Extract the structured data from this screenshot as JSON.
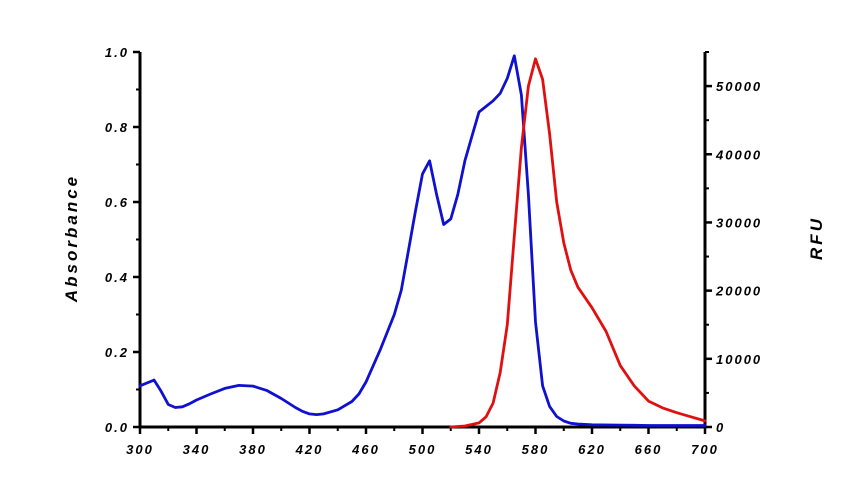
{
  "chart_data": {
    "type": "line",
    "title": "",
    "xlabel": "",
    "ylabel_left": "Absorbance",
    "ylabel_right": "RFU",
    "xlim": [
      300,
      700
    ],
    "ylim_left": [
      0,
      1.0
    ],
    "ylim_right": [
      0,
      55000
    ],
    "x_ticks": [
      "300",
      "340",
      "380",
      "420",
      "460",
      "500",
      "540",
      "580",
      "620",
      "660",
      "700"
    ],
    "y_left_ticks": [
      "0.0",
      "0.2",
      "0.4",
      "0.6",
      "0.8",
      "1.0"
    ],
    "y_right_ticks": [
      "0",
      "10000",
      "20000",
      "30000",
      "40000",
      "50000"
    ],
    "grid": false,
    "series": [
      {
        "axis": "left",
        "color": "#1010d0",
        "x": [
          300,
          310,
          315,
          320,
          325,
          330,
          335,
          340,
          350,
          360,
          370,
          380,
          390,
          400,
          410,
          415,
          420,
          425,
          430,
          440,
          450,
          455,
          460,
          470,
          480,
          485,
          490,
          495,
          500,
          505,
          510,
          515,
          520,
          525,
          530,
          535,
          540,
          550,
          555,
          560,
          565,
          570,
          575,
          580,
          585,
          590,
          595,
          600,
          605,
          610,
          620,
          640,
          660,
          680,
          700
        ],
        "y": [
          0.11,
          0.125,
          0.095,
          0.06,
          0.052,
          0.054,
          0.062,
          0.072,
          0.088,
          0.103,
          0.111,
          0.109,
          0.097,
          0.076,
          0.052,
          0.042,
          0.035,
          0.033,
          0.035,
          0.046,
          0.068,
          0.088,
          0.12,
          0.205,
          0.3,
          0.365,
          0.47,
          0.575,
          0.675,
          0.71,
          0.62,
          0.54,
          0.555,
          0.62,
          0.71,
          0.775,
          0.84,
          0.87,
          0.89,
          0.93,
          0.99,
          0.885,
          0.62,
          0.28,
          0.11,
          0.055,
          0.028,
          0.016,
          0.01,
          0.008,
          0.006,
          0.005,
          0.004,
          0.004,
          0.004
        ]
      },
      {
        "axis": "right",
        "color": "#e01010",
        "x": [
          520,
          530,
          540,
          545,
          550,
          555,
          560,
          565,
          570,
          575,
          580,
          585,
          590,
          595,
          600,
          605,
          610,
          620,
          630,
          640,
          650,
          660,
          670,
          680,
          690,
          700
        ],
        "y": [
          0,
          150,
          600,
          1500,
          3500,
          8000,
          15000,
          28000,
          41000,
          50000,
          54000,
          51000,
          43000,
          33000,
          27000,
          23000,
          20500,
          17500,
          14000,
          9000,
          6000,
          3800,
          2800,
          2100,
          1500,
          900
        ]
      }
    ]
  }
}
